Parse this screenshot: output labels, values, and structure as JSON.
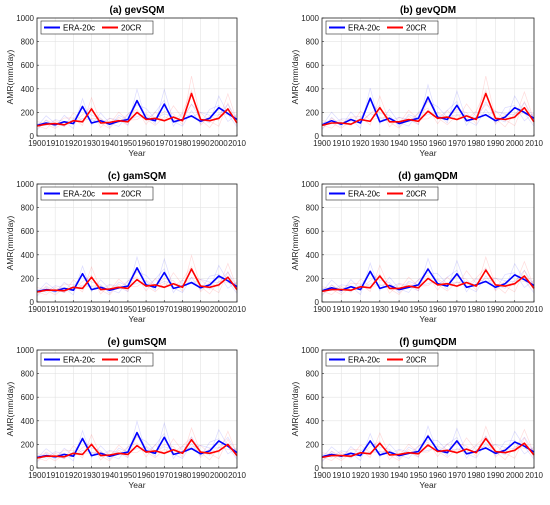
{
  "chart_data": [
    {
      "type": "line",
      "title": "(a) gevSQM",
      "xlabel": "Year",
      "ylabel": "AMR(mm/day)",
      "xlim": [
        1900,
        2010
      ],
      "ylim": [
        0,
        1000
      ],
      "x_ticks": [
        1900,
        1910,
        1920,
        1930,
        1940,
        1950,
        1960,
        1970,
        1980,
        1990,
        2000,
        2010
      ],
      "y_ticks": [
        0,
        200,
        400,
        600,
        800,
        1000
      ],
      "grid": true,
      "legend_position": "top-left",
      "x": [
        1900,
        1905,
        1910,
        1915,
        1920,
        1925,
        1930,
        1935,
        1940,
        1945,
        1950,
        1955,
        1960,
        1965,
        1970,
        1975,
        1980,
        1985,
        1990,
        1995,
        2000,
        2005,
        2010
      ],
      "series": [
        {
          "name": "ERA-20c",
          "color": "#0000ff",
          "values": [
            90,
            110,
            95,
            120,
            105,
            250,
            110,
            130,
            100,
            125,
            140,
            300,
            150,
            130,
            270,
            120,
            140,
            170,
            125,
            150,
            240,
            190,
            140
          ]
        },
        {
          "name": "20CR",
          "color": "#ff0000",
          "values": [
            85,
            100,
            105,
            95,
            130,
            120,
            230,
            110,
            115,
            130,
            120,
            200,
            140,
            150,
            130,
            160,
            130,
            360,
            140,
            130,
            150,
            230,
            110
          ]
        }
      ]
    },
    {
      "type": "line",
      "title": "(b) gevQDM",
      "xlabel": "Year",
      "ylabel": "AMR(mm/day)",
      "xlim": [
        1900,
        2010
      ],
      "ylim": [
        0,
        1000
      ],
      "x_ticks": [
        1900,
        1910,
        1920,
        1930,
        1940,
        1950,
        1960,
        1970,
        1980,
        1990,
        2000,
        2010
      ],
      "y_ticks": [
        0,
        200,
        400,
        600,
        800,
        1000
      ],
      "grid": true,
      "legend_position": "top-left",
      "x": [
        1900,
        1905,
        1910,
        1915,
        1920,
        1925,
        1930,
        1935,
        1940,
        1945,
        1950,
        1955,
        1960,
        1965,
        1970,
        1975,
        1980,
        1985,
        1990,
        1995,
        2000,
        2005,
        2010
      ],
      "series": [
        {
          "name": "ERA-20c",
          "color": "#0000ff",
          "values": [
            95,
            130,
            100,
            140,
            110,
            320,
            120,
            150,
            105,
            130,
            150,
            330,
            160,
            140,
            260,
            130,
            150,
            180,
            130,
            160,
            240,
            200,
            150
          ]
        },
        {
          "name": "20CR",
          "color": "#ff0000",
          "values": [
            90,
            110,
            110,
            100,
            140,
            125,
            240,
            120,
            120,
            140,
            125,
            210,
            150,
            160,
            140,
            170,
            140,
            360,
            150,
            140,
            160,
            240,
            120
          ]
        }
      ]
    },
    {
      "type": "line",
      "title": "(c) gamSQM",
      "xlabel": "Year",
      "ylabel": "AMR(mm/day)",
      "xlim": [
        1900,
        2010
      ],
      "ylim": [
        0,
        1000
      ],
      "x_ticks": [
        1900,
        1910,
        1920,
        1930,
        1940,
        1950,
        1960,
        1970,
        1980,
        1990,
        2000,
        2010
      ],
      "y_ticks": [
        0,
        200,
        400,
        600,
        800,
        1000
      ],
      "grid": true,
      "legend_position": "top-left",
      "x": [
        1900,
        1905,
        1910,
        1915,
        1920,
        1925,
        1930,
        1935,
        1940,
        1945,
        1950,
        1955,
        1960,
        1965,
        1970,
        1975,
        1980,
        1985,
        1990,
        1995,
        2000,
        2005,
        2010
      ],
      "series": [
        {
          "name": "ERA-20c",
          "color": "#0000ff",
          "values": [
            90,
            105,
            95,
            115,
            100,
            240,
            105,
            125,
            100,
            120,
            135,
            290,
            145,
            125,
            250,
            115,
            135,
            165,
            120,
            145,
            220,
            180,
            130
          ]
        },
        {
          "name": "20CR",
          "color": "#ff0000",
          "values": [
            85,
            100,
            100,
            95,
            125,
            115,
            210,
            105,
            110,
            125,
            115,
            190,
            135,
            145,
            125,
            155,
            125,
            280,
            135,
            125,
            145,
            210,
            105
          ]
        }
      ]
    },
    {
      "type": "line",
      "title": "(d) gamQDM",
      "xlabel": "Year",
      "ylabel": "AMR(mm/day)",
      "xlim": [
        1900,
        2010
      ],
      "ylim": [
        0,
        1000
      ],
      "x_ticks": [
        1900,
        1910,
        1920,
        1930,
        1940,
        1950,
        1960,
        1970,
        1980,
        1990,
        2000,
        2010
      ],
      "y_ticks": [
        0,
        200,
        400,
        600,
        800,
        1000
      ],
      "grid": true,
      "legend_position": "top-left",
      "x": [
        1900,
        1905,
        1910,
        1915,
        1920,
        1925,
        1930,
        1935,
        1940,
        1945,
        1950,
        1955,
        1960,
        1965,
        1970,
        1975,
        1980,
        1985,
        1990,
        1995,
        2000,
        2005,
        2010
      ],
      "series": [
        {
          "name": "ERA-20c",
          "color": "#0000ff",
          "values": [
            95,
            120,
            100,
            130,
            105,
            260,
            115,
            140,
            105,
            125,
            145,
            280,
            155,
            135,
            240,
            125,
            145,
            175,
            125,
            155,
            230,
            190,
            140
          ]
        },
        {
          "name": "20CR",
          "color": "#ff0000",
          "values": [
            90,
            105,
            105,
            100,
            130,
            120,
            220,
            115,
            115,
            135,
            120,
            200,
            145,
            155,
            135,
            165,
            135,
            270,
            145,
            135,
            155,
            220,
            115
          ]
        }
      ]
    },
    {
      "type": "line",
      "title": "(e) gumSQM",
      "xlabel": "Year",
      "ylabel": "AMR(mm/day)",
      "xlim": [
        1900,
        2010
      ],
      "ylim": [
        0,
        1000
      ],
      "x_ticks": [
        1900,
        1910,
        1920,
        1930,
        1940,
        1950,
        1960,
        1970,
        1980,
        1990,
        2000,
        2010
      ],
      "y_ticks": [
        0,
        200,
        400,
        600,
        800,
        1000
      ],
      "grid": true,
      "legend_position": "top-left",
      "x": [
        1900,
        1905,
        1910,
        1915,
        1920,
        1925,
        1930,
        1935,
        1940,
        1945,
        1950,
        1955,
        1960,
        1965,
        1970,
        1975,
        1980,
        1985,
        1990,
        1995,
        2000,
        2005,
        2010
      ],
      "series": [
        {
          "name": "ERA-20c",
          "color": "#0000ff",
          "values": [
            90,
            105,
            95,
            115,
            100,
            250,
            105,
            125,
            100,
            120,
            135,
            300,
            145,
            125,
            260,
            115,
            135,
            165,
            120,
            145,
            230,
            185,
            130
          ]
        },
        {
          "name": "20CR",
          "color": "#ff0000",
          "values": [
            85,
            100,
            100,
            95,
            125,
            115,
            200,
            105,
            110,
            125,
            115,
            190,
            135,
            145,
            125,
            155,
            125,
            240,
            135,
            125,
            145,
            200,
            105
          ]
        }
      ]
    },
    {
      "type": "line",
      "title": "(f) gumQDM",
      "xlabel": "Year",
      "ylabel": "AMR(mm/day)",
      "xlim": [
        1900,
        2010
      ],
      "ylim": [
        0,
        1000
      ],
      "x_ticks": [
        1900,
        1910,
        1920,
        1930,
        1940,
        1950,
        1960,
        1970,
        1980,
        1990,
        2000,
        2010
      ],
      "y_ticks": [
        0,
        200,
        400,
        600,
        800,
        1000
      ],
      "grid": true,
      "legend_position": "top-left",
      "x": [
        1900,
        1905,
        1910,
        1915,
        1920,
        1925,
        1930,
        1935,
        1940,
        1945,
        1950,
        1955,
        1960,
        1965,
        1970,
        1975,
        1980,
        1985,
        1990,
        1995,
        2000,
        2005,
        2010
      ],
      "series": [
        {
          "name": "ERA-20c",
          "color": "#0000ff",
          "values": [
            95,
            115,
            100,
            125,
            105,
            230,
            110,
            135,
            105,
            125,
            140,
            270,
            150,
            130,
            230,
            120,
            140,
            170,
            125,
            150,
            220,
            185,
            135
          ]
        },
        {
          "name": "20CR",
          "color": "#ff0000",
          "values": [
            90,
            105,
            105,
            100,
            130,
            120,
            210,
            110,
            115,
            130,
            120,
            195,
            140,
            150,
            130,
            160,
            130,
            250,
            140,
            130,
            150,
            210,
            110
          ]
        }
      ]
    }
  ]
}
